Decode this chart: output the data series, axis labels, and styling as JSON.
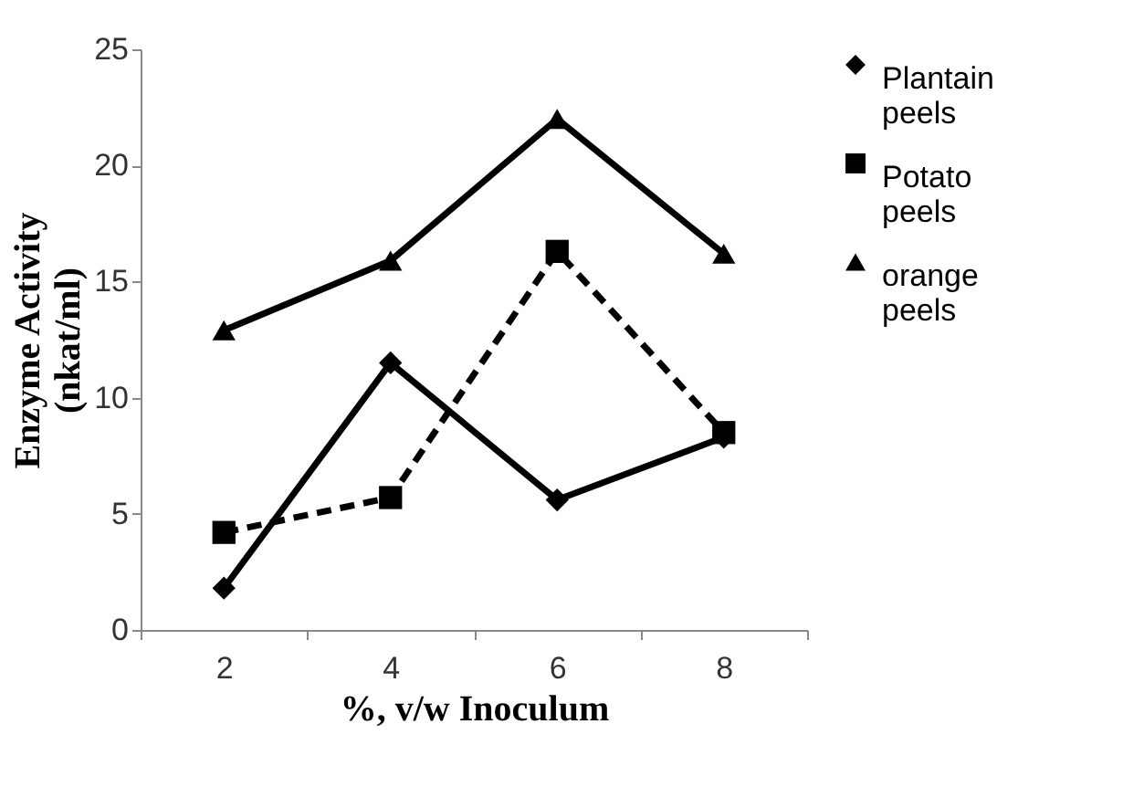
{
  "chart_data": {
    "type": "line",
    "xlabel": "%, v/w Inoculum",
    "ylabel": "Enzyme Activity (nkat/ml)",
    "categories": [
      "2",
      "4",
      "6",
      "8"
    ],
    "series": [
      {
        "name": "Plantain peels",
        "color": "#000000",
        "marker": "diamond",
        "line_style": "solid",
        "values": [
          1.8,
          11.5,
          5.6,
          8.3
        ]
      },
      {
        "name": "Potato peels",
        "color": "#000000",
        "marker": "square",
        "line_style": "dashed",
        "values": [
          4.2,
          5.7,
          16.3,
          8.5
        ]
      },
      {
        "name": "orange peels",
        "color": "#000000",
        "marker": "triangle",
        "line_style": "solid",
        "values": [
          12.9,
          15.9,
          22.0,
          16.2
        ]
      }
    ],
    "ylim": [
      0,
      25
    ],
    "yticks": [
      0,
      5,
      10,
      15,
      20,
      25
    ],
    "grid": false,
    "legend": "top right"
  }
}
